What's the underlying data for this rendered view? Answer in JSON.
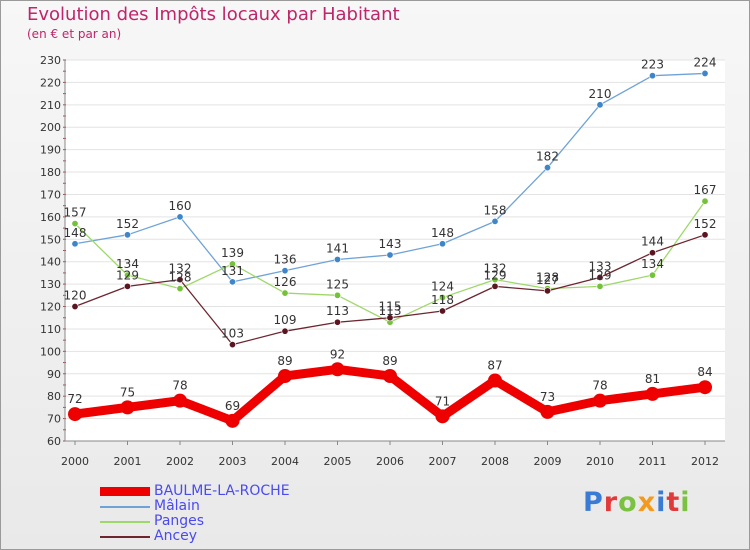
{
  "title": "Evolution des Impôts locaux par Habitant",
  "subtitle": "(en € et par an)",
  "logo": {
    "text": "Proxiti",
    "colors": [
      "#3a7bd5",
      "#e23a3a",
      "#7cc242",
      "#f39a1e",
      "#3a7bd5",
      "#e23a3a",
      "#7cc242"
    ]
  },
  "chart_data": {
    "type": "line",
    "title": "Evolution des Impôts locaux par Habitant",
    "subtitle": "(en € et par an)",
    "xlabel": "",
    "ylabel": "",
    "ylim": [
      60,
      230
    ],
    "yticks": [
      "60",
      "70",
      "80",
      "90",
      "100",
      "110",
      "120",
      "130",
      "140",
      "150",
      "160",
      "170",
      "180",
      "190",
      "200",
      "210",
      "220",
      "230"
    ],
    "categories": [
      "2000",
      "2001",
      "2002",
      "2003",
      "2004",
      "2005",
      "2006",
      "2007",
      "2008",
      "2009",
      "2010",
      "2011",
      "2012"
    ],
    "legend_position": "bottom-left",
    "series": [
      {
        "name": "BAULME-LA-ROCHE",
        "color": "#ee0000",
        "point_color": "#ee0000",
        "thick": true,
        "values": [
          72,
          75,
          78,
          69,
          89,
          92,
          89,
          71,
          87,
          73,
          78,
          81,
          84
        ],
        "labels": [
          "72",
          "75",
          "78",
          "69",
          "89",
          "92",
          "89",
          "71",
          "87",
          "73",
          "78",
          "81",
          "84"
        ]
      },
      {
        "name": "Mâlain",
        "color": "#6fa3d6",
        "point_color": "#3f86c9",
        "thick": false,
        "values": [
          148,
          152,
          160,
          131,
          136,
          141,
          143,
          148,
          158,
          182,
          210,
          223,
          224
        ],
        "labels": [
          "148",
          "152",
          "160",
          "131",
          "136",
          "141",
          "143",
          "148",
          "158",
          "182",
          "210",
          "223",
          "224"
        ]
      },
      {
        "name": "Panges",
        "color": "#9ed86a",
        "point_color": "#74c23a",
        "thick": false,
        "values": [
          157,
          134,
          128,
          139,
          126,
          125,
          113,
          124,
          132,
          128,
          129,
          134,
          167
        ],
        "labels": [
          "157",
          "134",
          "128",
          "139",
          "126",
          "125",
          "113",
          "124",
          "132",
          "128",
          "129",
          "134",
          "167"
        ]
      },
      {
        "name": "Ancey",
        "color": "#6d2630",
        "point_color": "#5a1520",
        "thick": false,
        "values": [
          120,
          129,
          132,
          103,
          109,
          113,
          115,
          118,
          129,
          127,
          133,
          144,
          152
        ],
        "labels": [
          "120",
          "129",
          "132",
          "103",
          "109",
          "113",
          "115",
          "118",
          "129",
          "127",
          "133",
          "144",
          "152"
        ]
      }
    ]
  }
}
